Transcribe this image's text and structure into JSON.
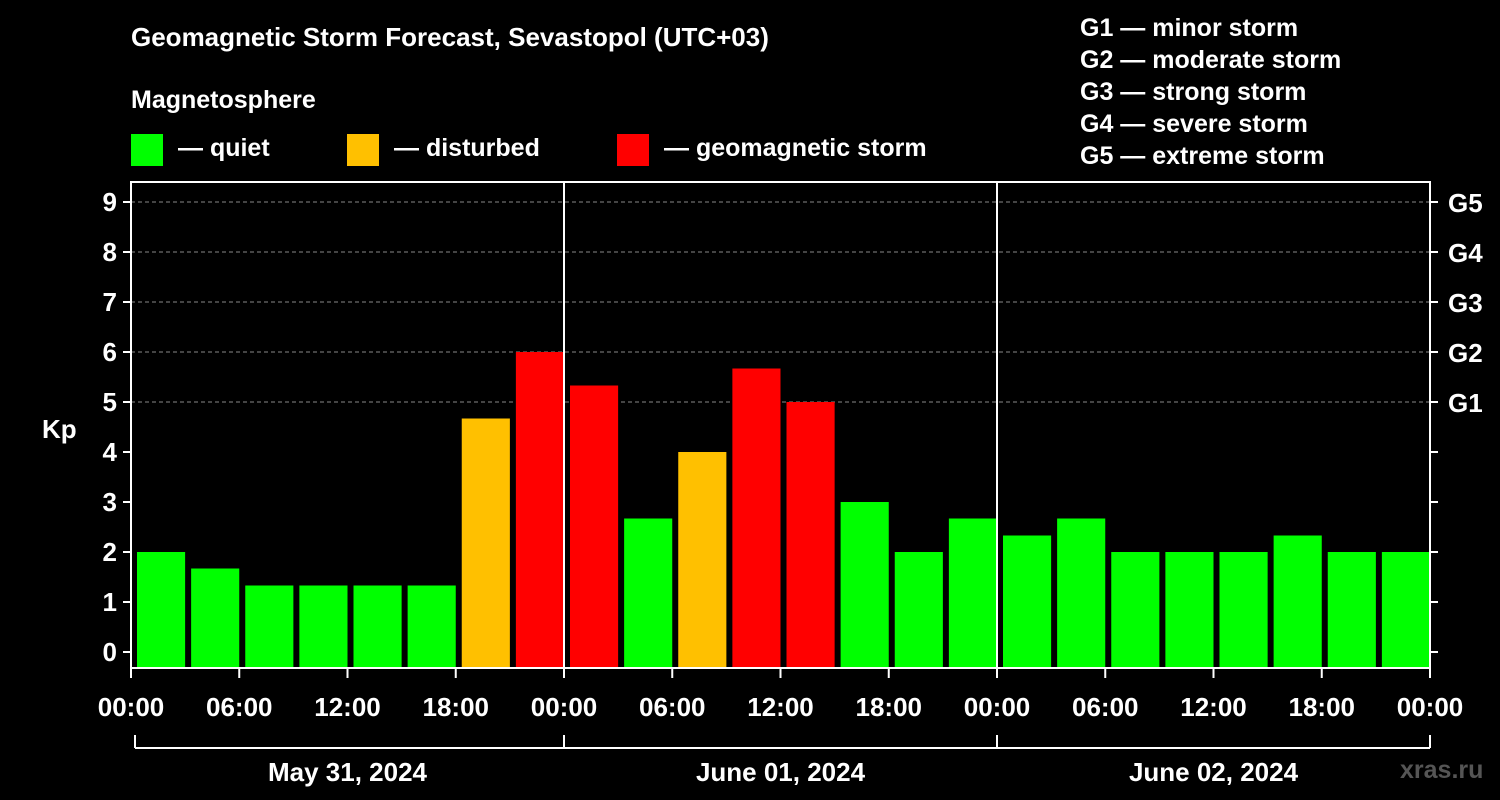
{
  "title": "Geomagnetic Storm Forecast, Sevastopol (UTC+03)",
  "legend": {
    "heading": "Magnetosphere",
    "items": [
      {
        "label": "— quiet",
        "color": "#00ff00"
      },
      {
        "label": "— disturbed",
        "color": "#ffc000"
      },
      {
        "label": "— geomagnetic storm",
        "color": "#ff0000"
      }
    ]
  },
  "storm_scale": [
    "G1 — minor storm",
    "G2 — moderate storm",
    "G3 — strong storm",
    "G4 — severe storm",
    "G5 — extreme storm"
  ],
  "watermark": "xras.ru",
  "chart_data": {
    "type": "bar",
    "ylabel": "Kp",
    "ylim": [
      0,
      9
    ],
    "yticks": [
      "0",
      "1",
      "2",
      "3",
      "4",
      "5",
      "6",
      "7",
      "8",
      "9"
    ],
    "right_axis_labels": [
      {
        "kp": 5,
        "label": "G1"
      },
      {
        "kp": 6,
        "label": "G2"
      },
      {
        "kp": 7,
        "label": "G3"
      },
      {
        "kp": 8,
        "label": "G4"
      },
      {
        "kp": 9,
        "label": "G5"
      }
    ],
    "xtick_labels": [
      "00:00",
      "06:00",
      "12:00",
      "18:00",
      "00:00",
      "06:00",
      "12:00",
      "18:00",
      "00:00",
      "06:00",
      "12:00",
      "18:00",
      "00:00"
    ],
    "days": [
      "May 31, 2024",
      "June 01, 2024",
      "June 02, 2024"
    ],
    "interval_hours": 3,
    "grid": "dashed at Kp 5, 6, 7, 8, 9",
    "bars": [
      {
        "kp": 2.0,
        "status": "quiet"
      },
      {
        "kp": 1.67,
        "status": "quiet"
      },
      {
        "kp": 1.33,
        "status": "quiet"
      },
      {
        "kp": 1.33,
        "status": "quiet"
      },
      {
        "kp": 1.33,
        "status": "quiet"
      },
      {
        "kp": 1.33,
        "status": "quiet"
      },
      {
        "kp": 4.67,
        "status": "disturbed"
      },
      {
        "kp": 6.0,
        "status": "storm"
      },
      {
        "kp": 5.33,
        "status": "storm"
      },
      {
        "kp": 2.67,
        "status": "quiet"
      },
      {
        "kp": 4.0,
        "status": "disturbed"
      },
      {
        "kp": 5.67,
        "status": "storm"
      },
      {
        "kp": 5.0,
        "status": "storm"
      },
      {
        "kp": 3.0,
        "status": "quiet"
      },
      {
        "kp": 2.0,
        "status": "quiet"
      },
      {
        "kp": 2.67,
        "status": "quiet"
      },
      {
        "kp": 2.33,
        "status": "quiet"
      },
      {
        "kp": 2.67,
        "status": "quiet"
      },
      {
        "kp": 2.0,
        "status": "quiet"
      },
      {
        "kp": 2.0,
        "status": "quiet"
      },
      {
        "kp": 2.0,
        "status": "quiet"
      },
      {
        "kp": 2.33,
        "status": "quiet"
      },
      {
        "kp": 2.0,
        "status": "quiet"
      },
      {
        "kp": 2.0,
        "status": "quiet"
      }
    ],
    "status_colors": {
      "quiet": "#00ff00",
      "disturbed": "#ffc000",
      "storm": "#ff0000"
    }
  }
}
